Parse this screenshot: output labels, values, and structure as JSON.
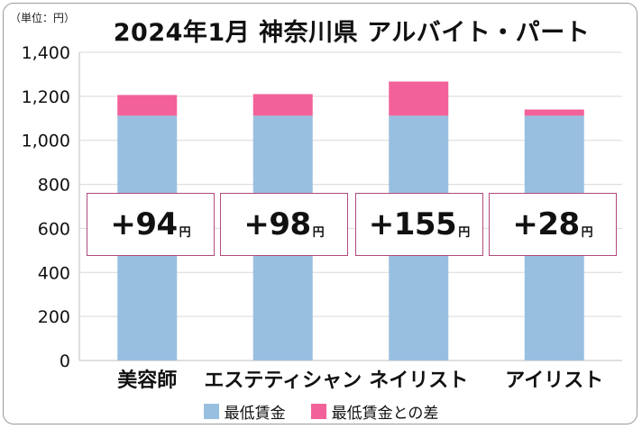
{
  "unit_label": "（単位：円）",
  "colors": {
    "minimum_wage": "#98bfe0",
    "difference": "#f2619a",
    "badge_border": "#b04a7b"
  },
  "chart_data": {
    "type": "bar",
    "stacked": true,
    "title": "2024年1月 神奈川県 アルバイト・パート",
    "categories": [
      "美容師",
      "エステティシャン",
      "ネイリスト",
      "アイリスト"
    ],
    "series": [
      {
        "name": "最低賃金",
        "values": [
          1112,
          1112,
          1112,
          1112
        ]
      },
      {
        "name": "最低賃金との差",
        "values": [
          94,
          98,
          155,
          28
        ]
      }
    ],
    "annotations": [
      "+94",
      "+98",
      "+155",
      "+28"
    ],
    "annotation_unit": "円",
    "ylim": [
      0,
      1400
    ],
    "yticks": [
      0,
      200,
      400,
      600,
      800,
      1000,
      1200,
      1400
    ],
    "ytick_labels": [
      "0",
      "200",
      "400",
      "600",
      "800",
      "1,000",
      "1,200",
      "1,400"
    ],
    "grid": true,
    "legend_position": "bottom"
  }
}
